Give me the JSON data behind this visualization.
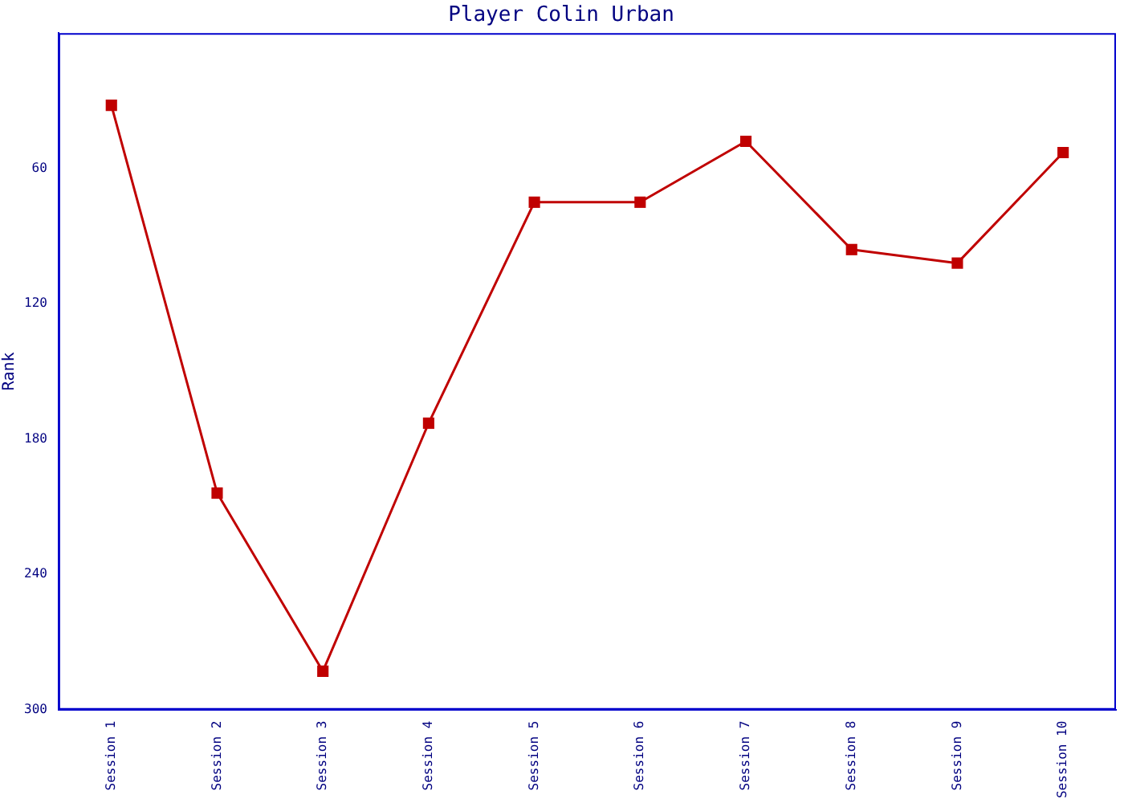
{
  "chart_data": {
    "type": "line",
    "title": "Player Colin Urban",
    "ylabel": "Rank",
    "categories": [
      "Session 1",
      "Session 2",
      "Session 3",
      "Session 4",
      "Session 5",
      "Session 6",
      "Session 7",
      "Session 8",
      "Session 9",
      "Session 10"
    ],
    "series": [
      {
        "color": "#c00000",
        "values": [
          32,
          204,
          283,
          173,
          75,
          75,
          48,
          96,
          102,
          53
        ]
      }
    ],
    "ylim": [
      300,
      0
    ],
    "yticks": [
      60,
      120,
      180,
      240,
      300
    ],
    "grid": false,
    "legend": false,
    "marker": "square",
    "line_style": "solid"
  }
}
